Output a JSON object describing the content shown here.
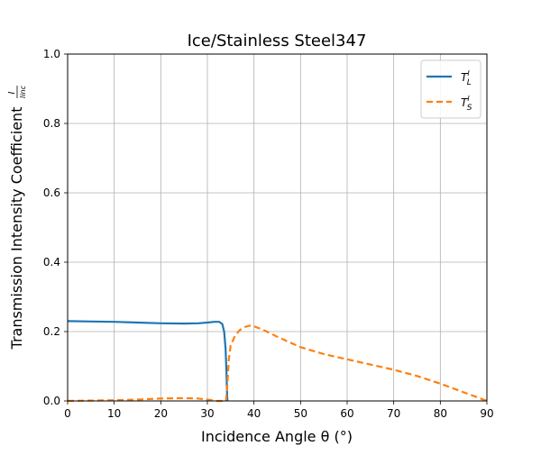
{
  "chart_data": {
    "type": "line",
    "title": "Ice/Stainless Steel347",
    "xlabel": "Incidence Angle θ (°)",
    "ylabel": "Transmission Intensity Coefficient",
    "ylabel_fraction": {
      "numerator": "I",
      "denominator": "I_inc"
    },
    "xlim": [
      0,
      90
    ],
    "ylim": [
      0,
      1.0
    ],
    "x_ticks": [
      0,
      10,
      20,
      30,
      40,
      50,
      60,
      70,
      80,
      90
    ],
    "y_ticks": [
      "0.0",
      "0.2",
      "0.4",
      "0.6",
      "0.8",
      "1.0"
    ],
    "grid": true,
    "legend_position": "top-right",
    "series": [
      {
        "name": "T_L^I",
        "legend_main": "T",
        "legend_sup": "I",
        "legend_sub": "L",
        "color": "#1f77b4",
        "style": "solid",
        "x": [
          0,
          5,
          10,
          15,
          20,
          25,
          28,
          30,
          31.5,
          32.5,
          33.2,
          33.6,
          33.9,
          34.1,
          34.2,
          34.3
        ],
        "y": [
          0.23,
          0.229,
          0.228,
          0.226,
          0.224,
          0.223,
          0.224,
          0.226,
          0.228,
          0.228,
          0.222,
          0.2,
          0.15,
          0.08,
          0.03,
          0.0
        ]
      },
      {
        "name": "T_S^I",
        "legend_main": "T",
        "legend_sup": "I",
        "legend_sub": "S",
        "color": "#ff7f0e",
        "style": "dashed",
        "x": [
          0,
          5,
          10,
          15,
          20,
          25,
          28,
          30,
          32,
          33,
          34,
          34.3,
          34.6,
          35,
          36,
          37,
          38,
          39,
          40,
          42,
          45,
          50,
          55,
          60,
          65,
          70,
          75,
          80,
          85,
          88,
          90
        ],
        "y": [
          0.0,
          0.001,
          0.002,
          0.004,
          0.007,
          0.008,
          0.007,
          0.004,
          0.0,
          0.0,
          0.0,
          0.05,
          0.12,
          0.16,
          0.19,
          0.205,
          0.213,
          0.217,
          0.215,
          0.205,
          0.185,
          0.155,
          0.135,
          0.12,
          0.105,
          0.09,
          0.072,
          0.05,
          0.025,
          0.01,
          0.0
        ]
      }
    ]
  }
}
